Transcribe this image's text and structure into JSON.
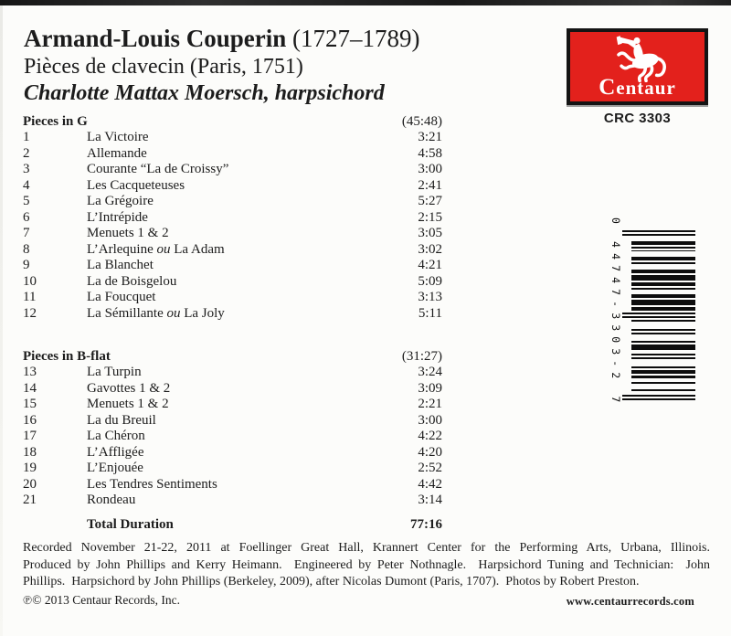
{
  "header": {
    "composer": "Armand-Louis Couperin",
    "dates": " (1727–1789)",
    "work_title": "Pièces de clavecin (Paris, 1751)",
    "performer": "Charlotte Mattax Moersch, harpsichord"
  },
  "label_logo": {
    "name": "Centaur",
    "icon": "centaur-trumpeter-icon",
    "catalog_number": "CRC 3303",
    "red": "#e3211c"
  },
  "tracklist": {
    "italic_word": "ou",
    "sections": [
      {
        "title": "Pieces in G",
        "duration": "(45:48)",
        "tracks": [
          {
            "no": "1",
            "title": "La Victoire",
            "time": "3:21"
          },
          {
            "no": "2",
            "title": "Allemande",
            "time": "4:58"
          },
          {
            "no": "3",
            "title": "Courante “La de Croissy”",
            "time": "3:00"
          },
          {
            "no": "4",
            "title": "Les Cacqueteuses",
            "time": "2:41"
          },
          {
            "no": "5",
            "title": "La Grégoire",
            "time": "5:27"
          },
          {
            "no": "6",
            "title": "L’Intrépide",
            "time": "2:15"
          },
          {
            "no": "7",
            "title": "Menuets 1 & 2",
            "time": "3:05"
          },
          {
            "no": "8",
            "title": "L’Arlequine ou La Adam",
            "time": "3:02"
          },
          {
            "no": "9",
            "title": "La Blanchet",
            "time": "4:21"
          },
          {
            "no": "10",
            "title": "La de Boisgelou",
            "time": "5:09"
          },
          {
            "no": "11",
            "title": "La Foucquet",
            "time": "3:13"
          },
          {
            "no": "12",
            "title": "La Sémillante ou La Joly",
            "time": "5:11"
          }
        ]
      },
      {
        "title": "Pieces in B-flat",
        "duration": "(31:27)",
        "tracks": [
          {
            "no": "13",
            "title": "La Turpin",
            "time": "3:24"
          },
          {
            "no": "14",
            "title": "Gavottes 1 & 2",
            "time": "3:09"
          },
          {
            "no": "15",
            "title": "Menuets 1 & 2",
            "time": "2:21"
          },
          {
            "no": "16",
            "title": "La du Breuil",
            "time": "3:00"
          },
          {
            "no": "17",
            "title": "La Chéron",
            "time": "4:22"
          },
          {
            "no": "18",
            "title": "L’Affligée",
            "time": "4:20"
          },
          {
            "no": "19",
            "title": "L’Enjouée",
            "time": "2:52"
          },
          {
            "no": "20",
            "title": "Les Tendres Sentiments",
            "time": "4:42"
          },
          {
            "no": "21",
            "title": "Rondeau",
            "time": "3:14"
          }
        ]
      }
    ],
    "total_label": "Total Duration",
    "total_time": "77:16"
  },
  "credits": {
    "lines": [
      "Recorded November 21-22, 2011 at Foellinger Great Hall, Krannert Center for the Performing Arts, Urbana, Illinois.",
      "Produced by John Phillips and Kerry Heimann.  Engineered by Peter Nothnagle.  Harpsichord Tuning and Technician:  John",
      "Phillips.  Harpsichord by John Phillips (Berkeley, 2009), after Nicolas Dumont (Paris, 1707).  Photos by Robert Preston."
    ]
  },
  "footer": {
    "copyright": "℗© 2013 Centaur Records, Inc.",
    "website": "www.centaurrecords.com"
  },
  "barcode": {
    "display": "0 44747-3303-2 7",
    "upc": "044747330327"
  }
}
